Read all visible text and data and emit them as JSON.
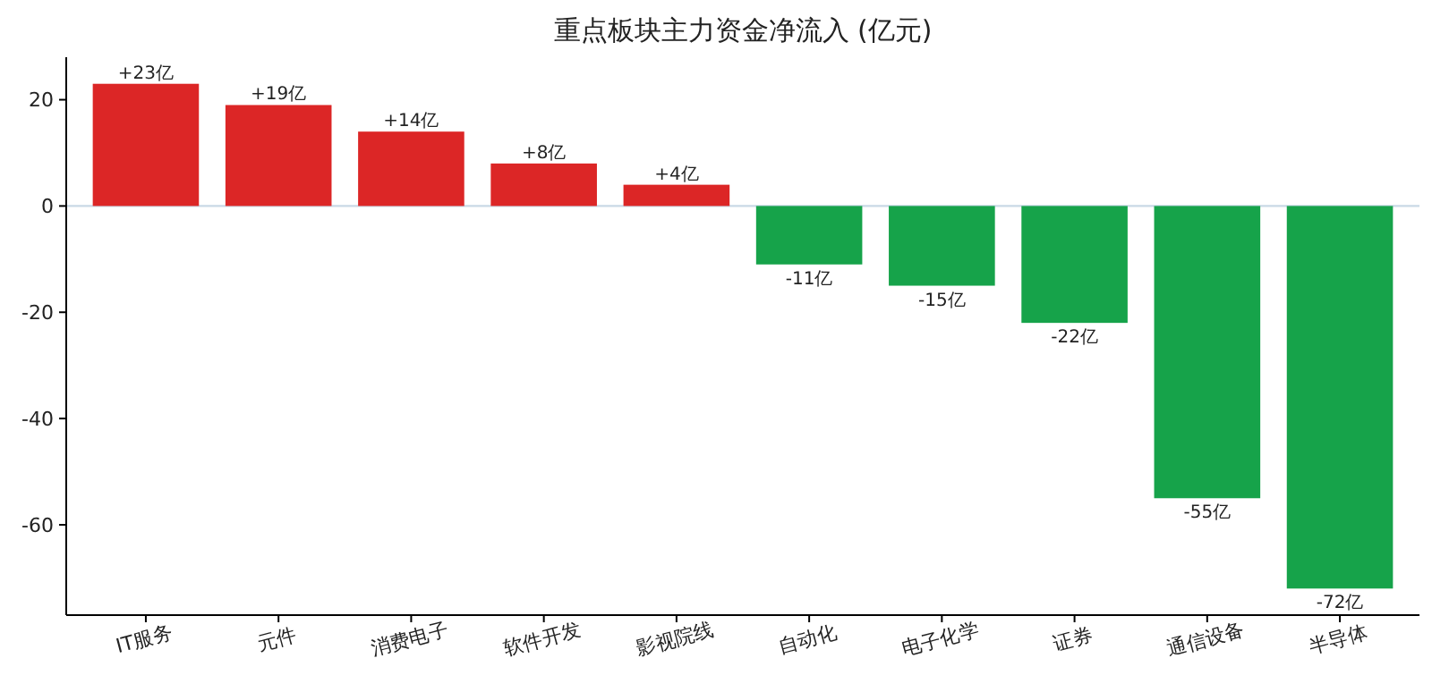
{
  "chart_data": {
    "type": "bar",
    "title": "重点板块主力资金净流入 (亿元)",
    "categories": [
      "IT服务",
      "元件",
      "消费电子",
      "软件开发",
      "影视院线",
      "自动化",
      "电子化学",
      "证券",
      "通信设备",
      "半导体"
    ],
    "values": [
      23,
      19,
      14,
      8,
      4,
      -11,
      -15,
      -22,
      -55,
      -72
    ],
    "colors": [
      "#dc2626",
      "#dc2626",
      "#dc2626",
      "#dc2626",
      "#dc2626",
      "#16a34a",
      "#16a34a",
      "#16a34a",
      "#16a34a",
      "#16a34a"
    ],
    "value_labels": [
      "+23亿",
      "+19亿",
      "+14亿",
      "+8亿",
      "+4亿",
      "-11亿",
      "-15亿",
      "-22亿",
      "-55亿",
      "-72亿"
    ],
    "ylim": [
      -77,
      28
    ],
    "yticks": [
      -60,
      -40,
      -20,
      0,
      20
    ],
    "grid": false,
    "ref_lines": [
      {
        "axis": "y",
        "value": 0,
        "color": "#c9d9e6"
      }
    ]
  }
}
